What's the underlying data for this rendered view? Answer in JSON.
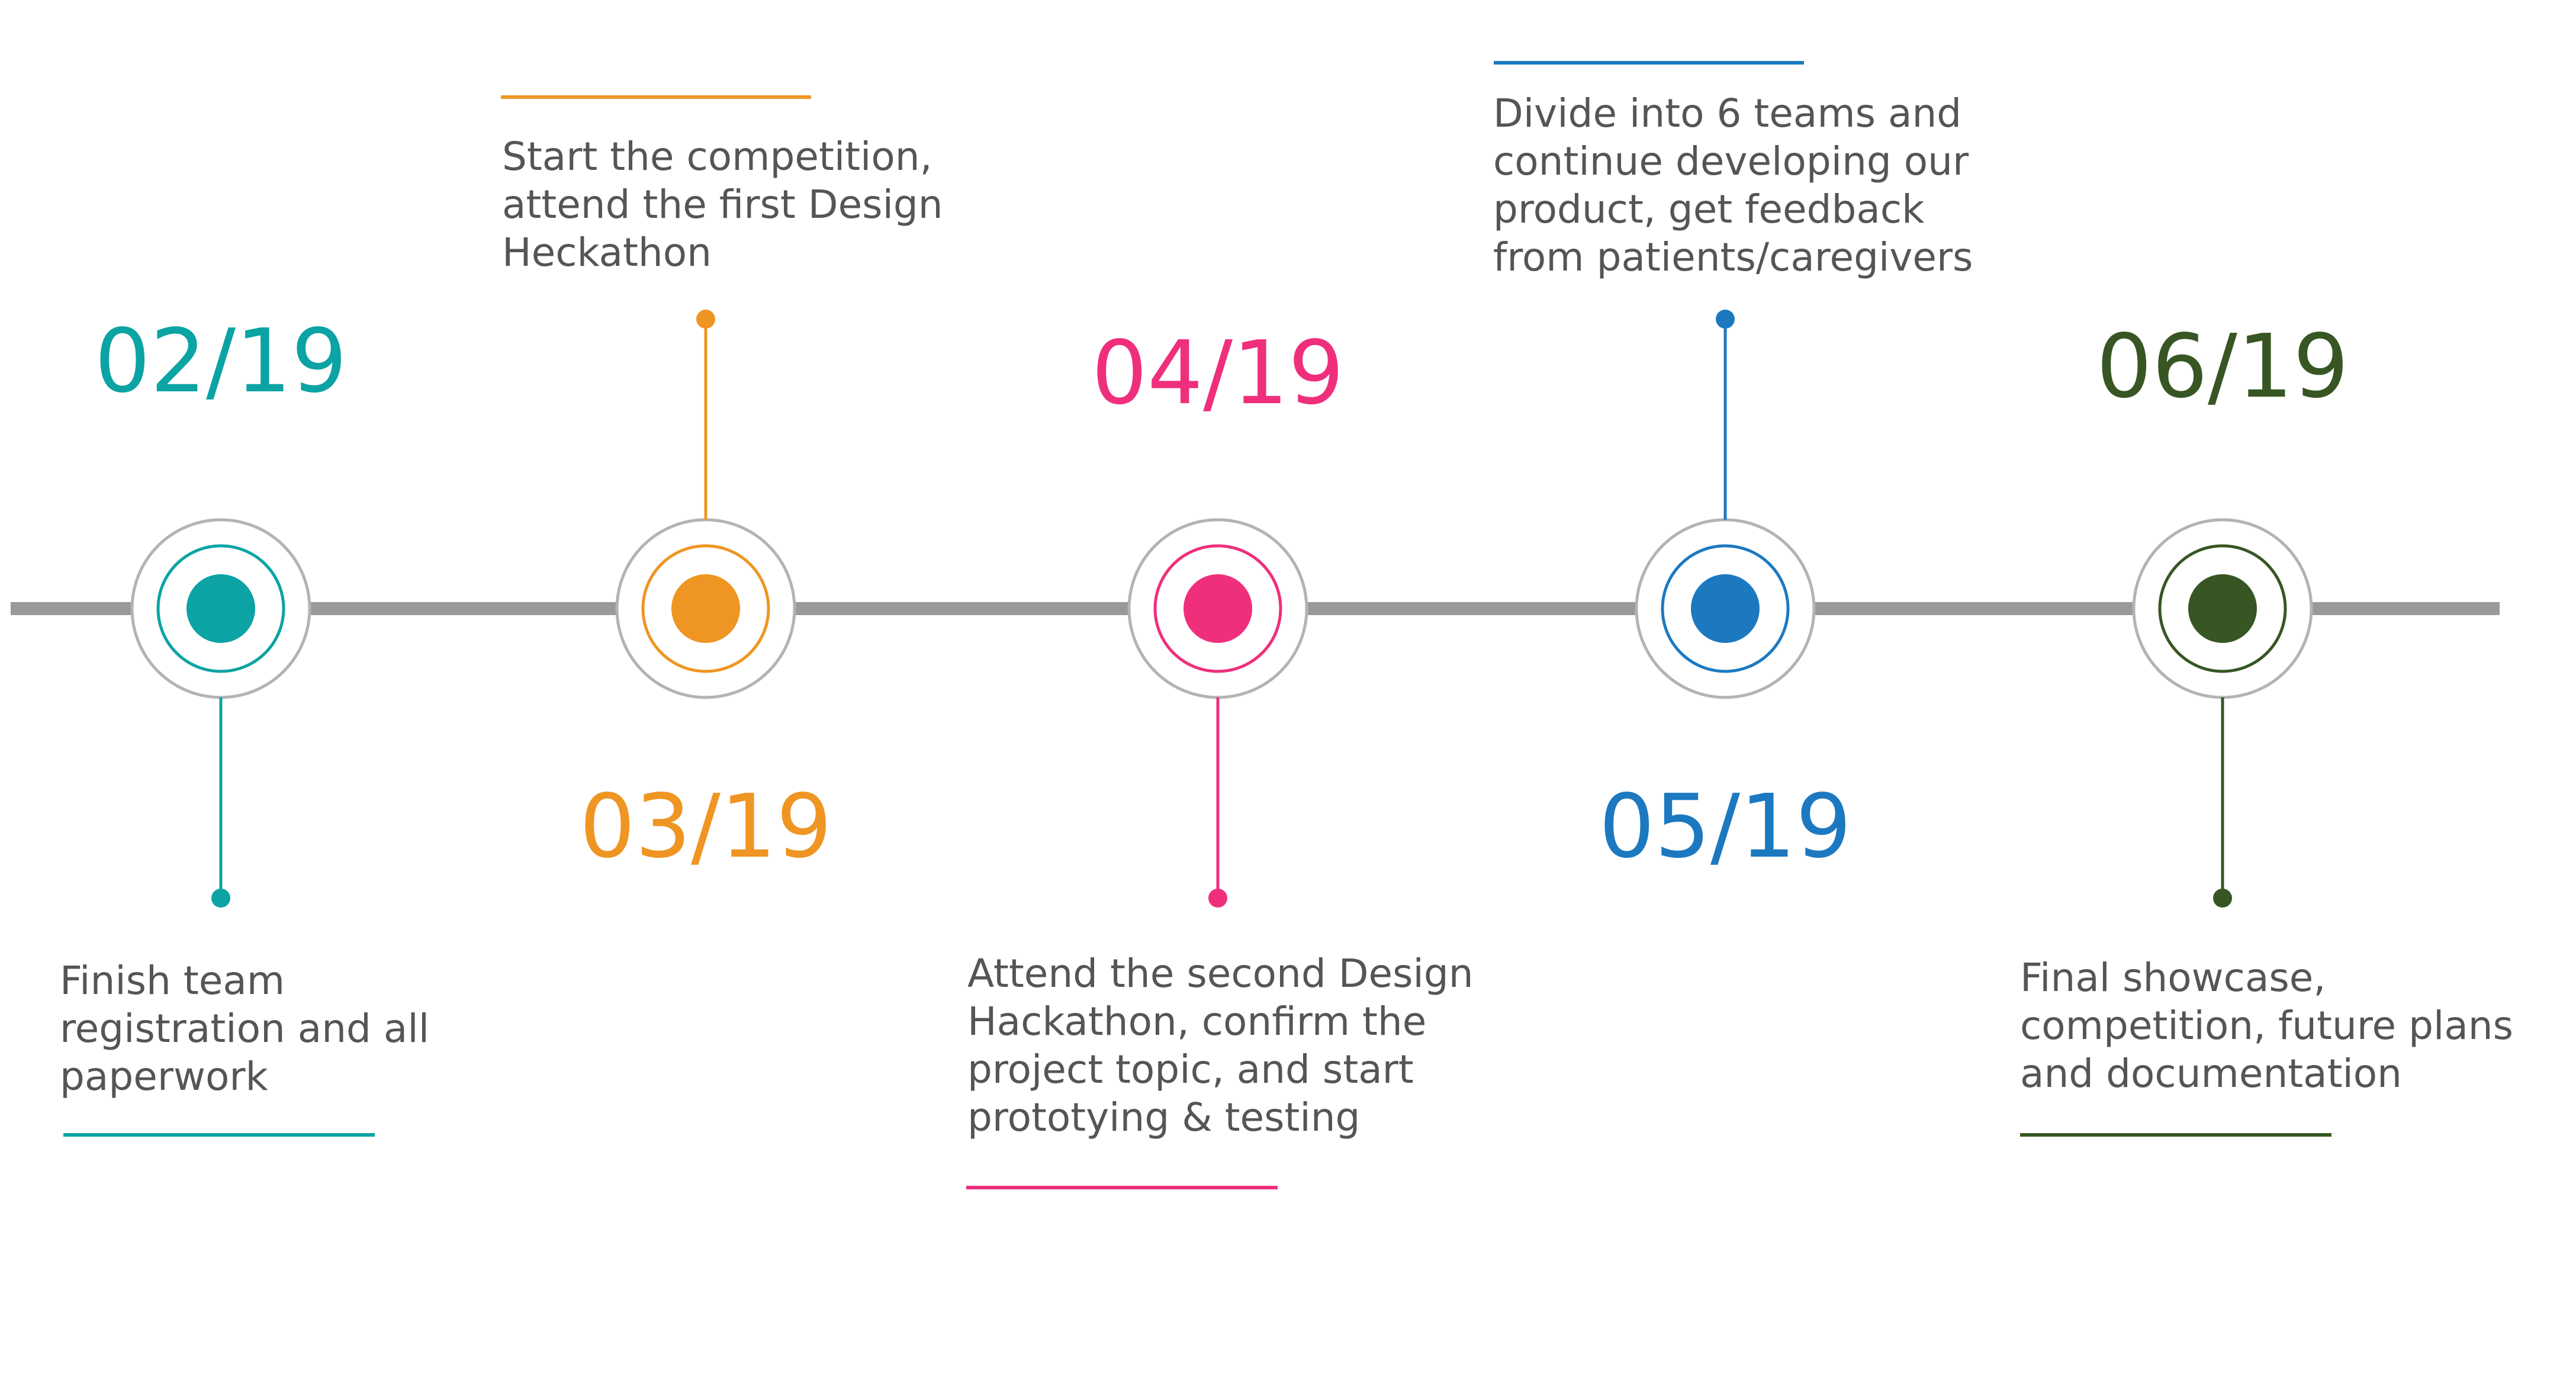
{
  "colors": {
    "track": "#999999",
    "ring": "#b3b3b3"
  },
  "milestones": [
    {
      "date": "02/19",
      "color": "#0ba3a3",
      "description": [
        "Finish team",
        "registration and all",
        "paperwork"
      ]
    },
    {
      "date": "03/19",
      "color": "#ef9523",
      "description": [
        "Start the competition,",
        "attend the first Design",
        "Heckathon"
      ]
    },
    {
      "date": "04/19",
      "color": "#ef2f7c",
      "description": [
        "Attend the second Design",
        "Hackathon, confirm the",
        "project topic, and start",
        "prototying & testing"
      ]
    },
    {
      "date": "05/19",
      "color": "#1c79c0",
      "description": [
        "Divide into 6 teams and",
        "continue developing our",
        "product, get feedback",
        "from patients/caregivers"
      ]
    },
    {
      "date": "06/19",
      "color": "#375623",
      "description": [
        "Final showcase,",
        "competition, future plans",
        "and documentation"
      ]
    }
  ]
}
